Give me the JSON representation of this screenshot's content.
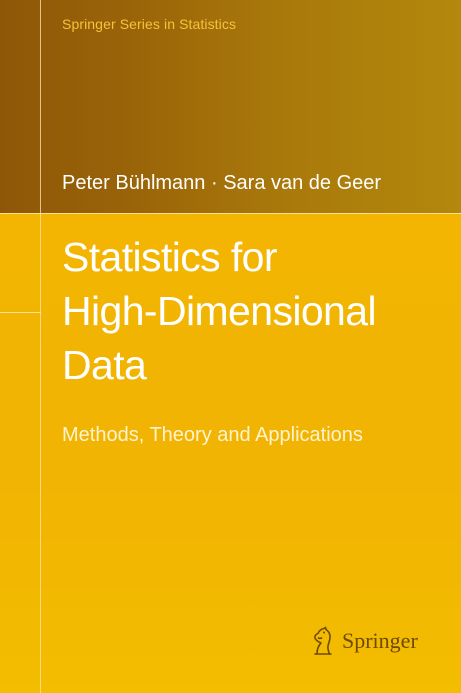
{
  "cover": {
    "series": "Springer Series in Statistics",
    "authors": "Peter Bühlmann · Sara van de Geer",
    "title_lines": [
      "Statistics for",
      "High-Dimensional",
      "Data"
    ],
    "subtitle": "Methods, Theory and Applications",
    "publisher": "Springer",
    "publisher_logo_icon": "horse-head-icon"
  },
  "colors": {
    "top_band": "#9a6508",
    "background": "#f2b400",
    "series_text": "#f7c23a",
    "title_text": "#ffffff",
    "publisher_text": "#6e4a00"
  }
}
